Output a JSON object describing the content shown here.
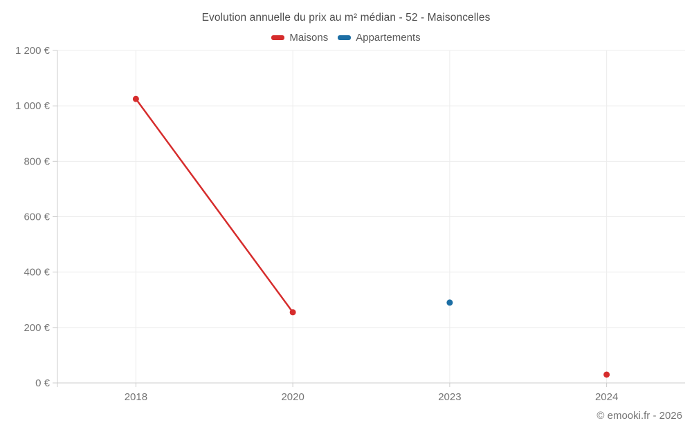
{
  "header": {
    "title": "Evolution annuelle du prix au m² médian - 52 - Maisoncelles"
  },
  "legend": {
    "items": [
      {
        "label": "Maisons",
        "color": "#d62c2c"
      },
      {
        "label": "Appartements",
        "color": "#1c6ea4"
      }
    ]
  },
  "footer": {
    "attribution": "© emooki.fr - 2026"
  },
  "chart_data": {
    "type": "line",
    "title": "Evolution annuelle du prix au m² médian - 52 - Maisoncelles",
    "categories": [
      "2018",
      "2020",
      "2023",
      "2024"
    ],
    "series": [
      {
        "name": "Maisons",
        "color": "#d62c2c",
        "values": [
          1025,
          255,
          null,
          30
        ]
      },
      {
        "name": "Appartements",
        "color": "#1c6ea4",
        "values": [
          null,
          null,
          290,
          null
        ]
      }
    ],
    "ylabel": "",
    "xlabel": "",
    "ylim": [
      0,
      1200
    ],
    "y_tick_step": 200,
    "y_tick_labels": [
      "0 €",
      "200 €",
      "400 €",
      "600 €",
      "800 €",
      "1 000 €",
      "1 200 €"
    ],
    "grid": true,
    "legend_position": "top",
    "point_radius": 4.5,
    "line_width": 2.5,
    "colors": {
      "gridline": "#ececec",
      "axis": "#cccccc",
      "tick_label": "#757575"
    }
  }
}
